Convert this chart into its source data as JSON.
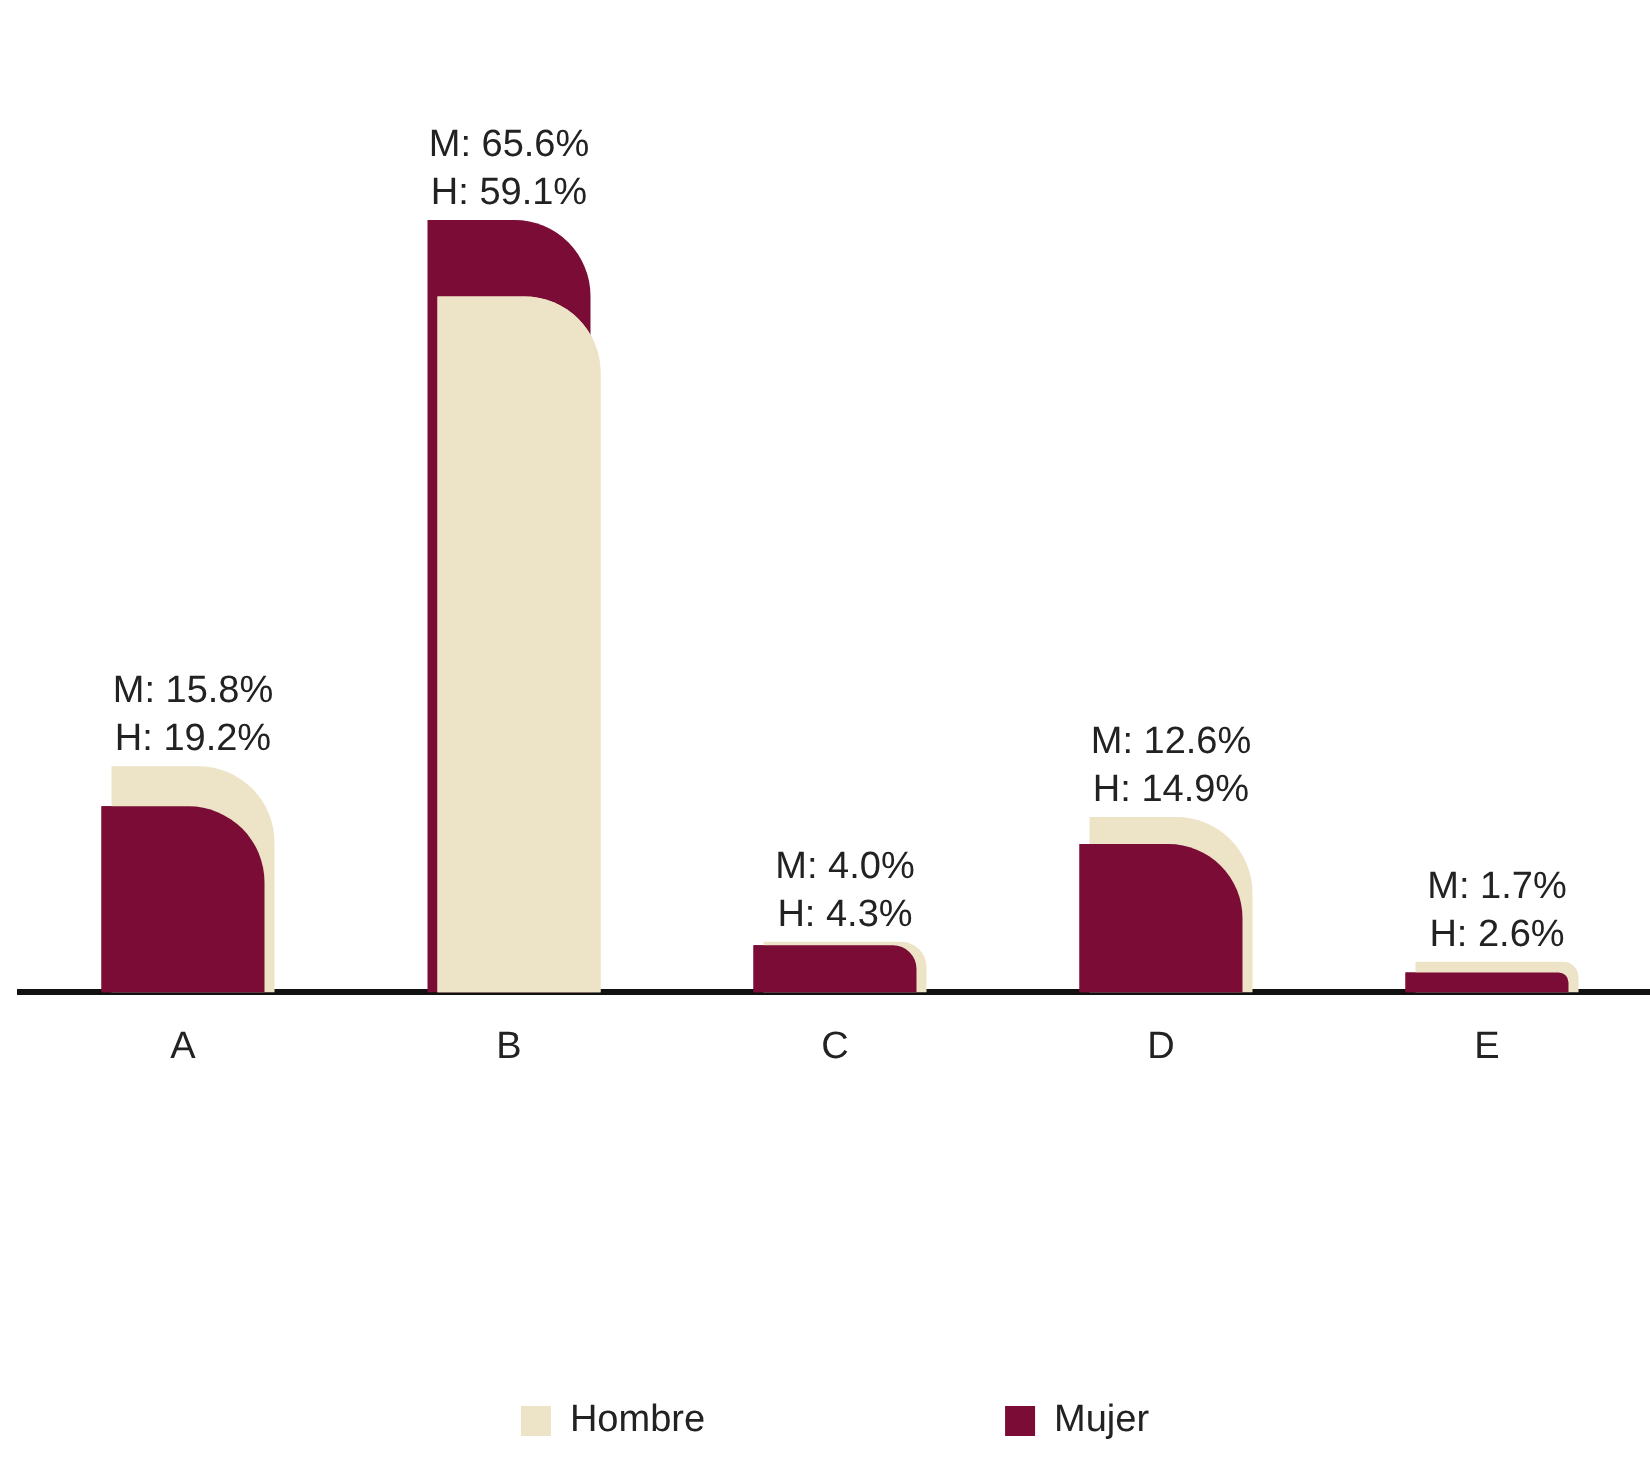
{
  "chart_data": {
    "type": "bar",
    "categories": [
      "A",
      "B",
      "C",
      "D",
      "E"
    ],
    "series": [
      {
        "name": "Hombre",
        "color": "#ede3c6",
        "values": [
          19.2,
          59.1,
          4.3,
          14.9,
          2.6
        ],
        "value_labels": [
          "H: 19.2%",
          "H: 59.1%",
          "H: 4.3%",
          "H: 14.9%",
          "H: 2.6%"
        ]
      },
      {
        "name": "Mujer",
        "color": "#7b0c35",
        "values": [
          15.8,
          65.6,
          4.0,
          12.6,
          1.7
        ],
        "value_labels": [
          "M: 15.8%",
          "M: 65.6%",
          "M: 4.0%",
          "M: 12.6%",
          "M: 1.7%"
        ]
      }
    ],
    "legend": "bottom",
    "grid": false,
    "tick_labels": "x"
  }
}
